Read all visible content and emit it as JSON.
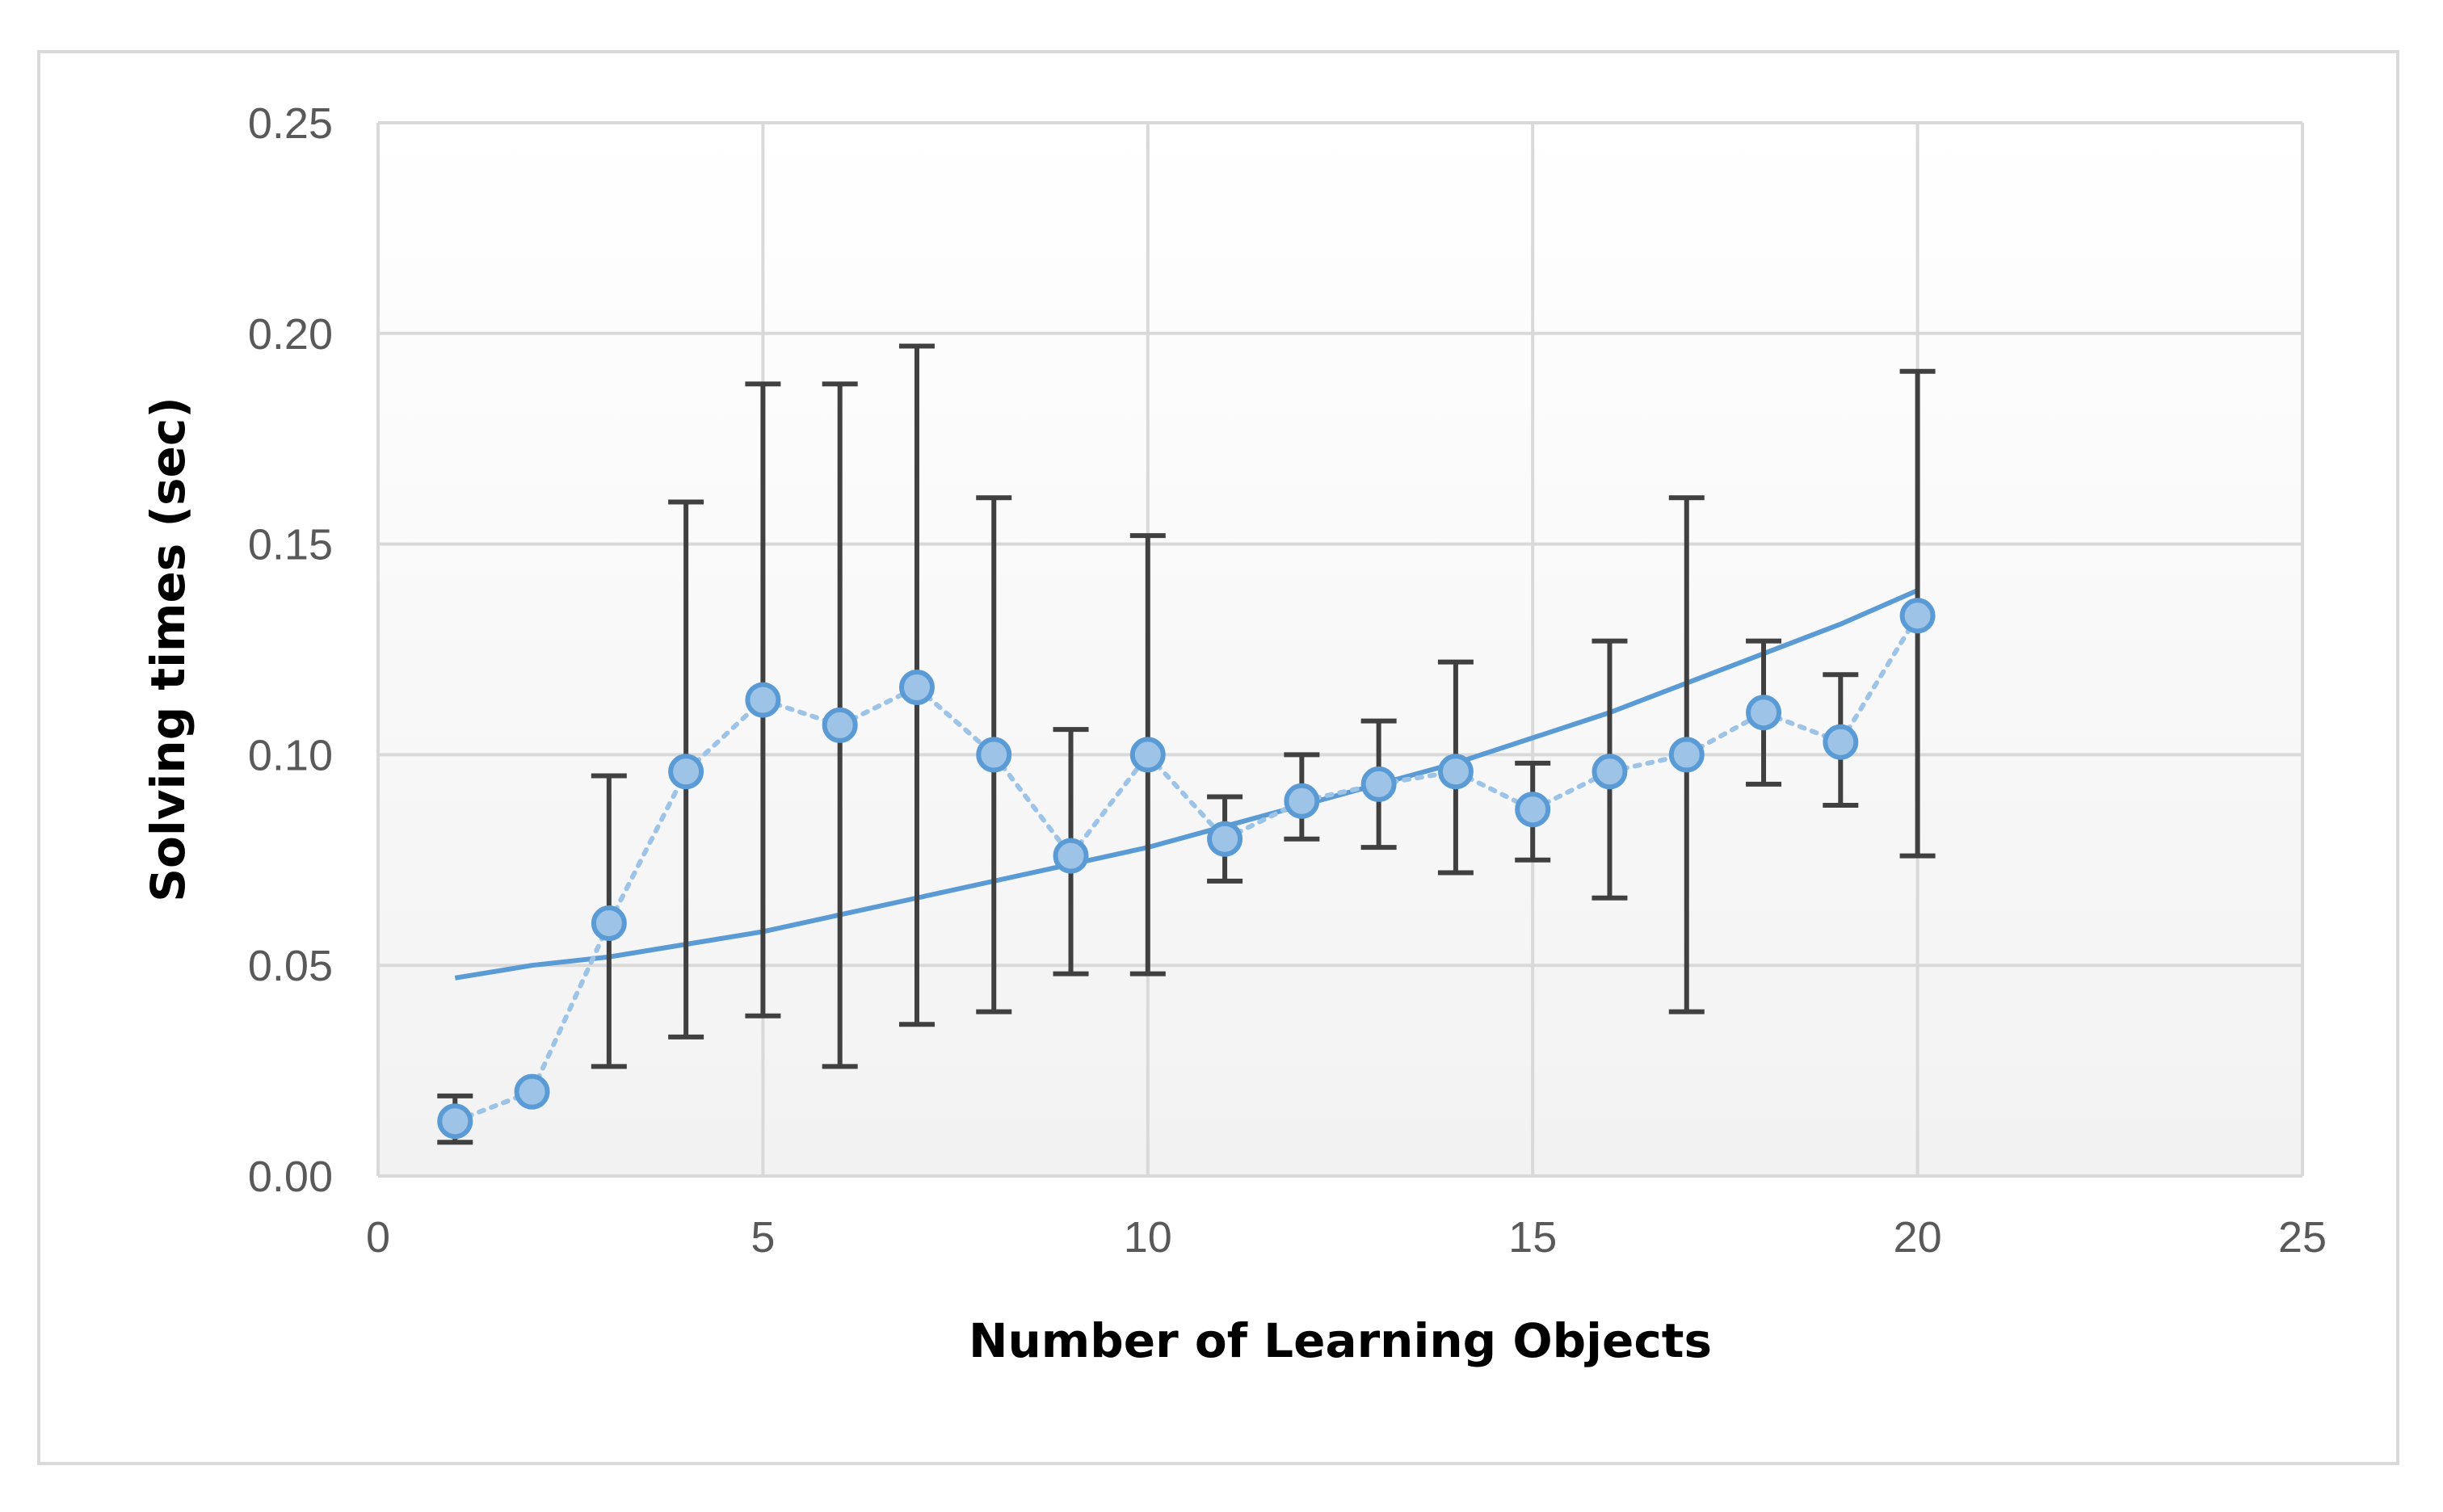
{
  "chart_data": {
    "type": "scatter",
    "title": "",
    "xlabel": "Number of Learning Objects",
    "ylabel": "Solving times (sec)",
    "xlim": [
      0,
      25
    ],
    "ylim": [
      0,
      0.25
    ],
    "x_ticks": [
      "0",
      "5",
      "10",
      "15",
      "20",
      "25"
    ],
    "y_ticks": [
      "0.00",
      "0.05",
      "0.10",
      "0.15",
      "0.20",
      "0.25"
    ],
    "grid": true,
    "legend": "none",
    "series": [
      {
        "style": "markers with dotted line and error bars",
        "color": "#5b9bd5",
        "marker_fill": "#9dc3e6",
        "x": [
          1,
          2,
          3,
          4,
          5,
          6,
          7,
          8,
          9,
          10,
          11,
          12,
          13,
          14,
          15,
          16,
          17,
          18,
          19,
          20
        ],
        "y": [
          0.013,
          0.02,
          0.06,
          0.096,
          0.113,
          0.107,
          0.116,
          0.1,
          0.076,
          0.1,
          0.08,
          0.089,
          0.093,
          0.096,
          0.087,
          0.096,
          0.1,
          0.11,
          0.103,
          0.133
        ],
        "error_low": [
          0.008,
          null,
          0.026,
          0.033,
          0.038,
          0.026,
          0.036,
          0.039,
          0.048,
          0.048,
          0.07,
          0.08,
          0.078,
          0.072,
          0.075,
          0.066,
          0.039,
          0.093,
          0.088,
          0.076
        ],
        "error_high": [
          0.019,
          null,
          0.095,
          0.16,
          0.188,
          0.188,
          0.197,
          0.161,
          0.106,
          0.152,
          0.09,
          0.1,
          0.108,
          0.122,
          0.098,
          0.127,
          0.161,
          0.127,
          0.119,
          0.191
        ]
      },
      {
        "style": "trendline",
        "color": "#5b9bd5",
        "x": [
          1,
          2,
          3,
          4,
          5,
          6,
          7,
          8,
          9,
          10,
          11,
          12,
          13,
          14,
          15,
          16,
          17,
          18,
          19,
          20
        ],
        "y": [
          0.047,
          0.05,
          0.052,
          0.055,
          0.058,
          0.062,
          0.066,
          0.07,
          0.074,
          0.078,
          0.083,
          0.088,
          0.093,
          0.098,
          0.104,
          0.11,
          0.117,
          0.124,
          0.131,
          0.139
        ]
      }
    ],
    "colors": {
      "grid": "#d9d9d9",
      "error_bar": "#404040",
      "plot_bg_top": "#ffffff",
      "plot_bg_bottom": "#f2f2f2"
    }
  }
}
